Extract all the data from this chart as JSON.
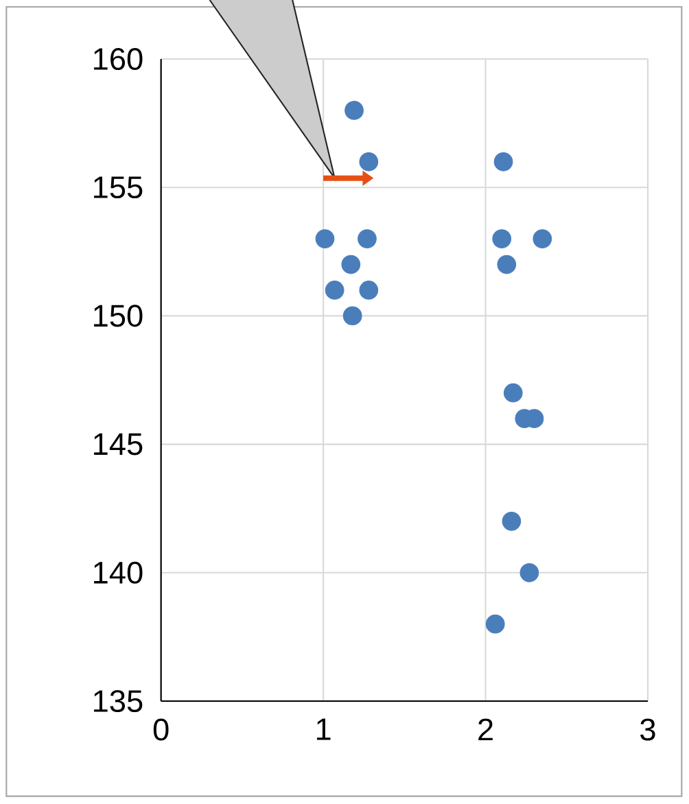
{
  "chart_data": {
    "type": "scatter",
    "x": [
      1.19,
      1.28,
      1.01,
      1.27,
      1.17,
      1.07,
      1.28,
      1.18,
      2.11,
      2.1,
      2.35,
      2.13,
      2.17,
      2.24,
      2.3,
      2.16,
      2.27,
      2.06
    ],
    "values": [
      158,
      156,
      153,
      153,
      152,
      151,
      151,
      150,
      156,
      153,
      153,
      152,
      147,
      146,
      146,
      142,
      140,
      138
    ],
    "color": "#4a7ebb",
    "xlim": [
      0,
      3
    ],
    "xticks": [
      0,
      1,
      2,
      3
    ],
    "ylim": [
      135,
      160
    ],
    "yticks": [
      135,
      140,
      145,
      150,
      155,
      160
    ],
    "grid": true
  }
}
